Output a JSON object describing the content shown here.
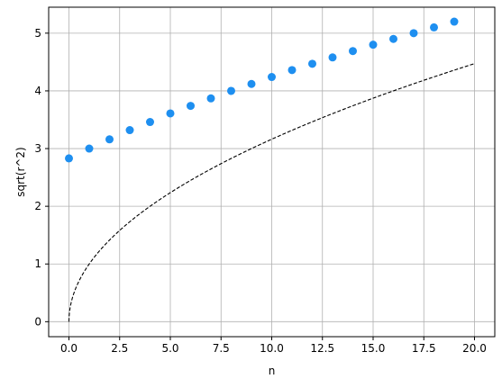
{
  "chart_data": {
    "type": "scatter",
    "title": "",
    "xlabel": "n",
    "ylabel": "sqrt(r^2)",
    "xlim": [
      -1,
      21
    ],
    "ylim": [
      -0.26,
      5.45
    ],
    "grid": true,
    "x_ticks": [
      0,
      2.5,
      5,
      7.5,
      10,
      12.5,
      15,
      17.5,
      20
    ],
    "x_tick_labels": [
      "0.0",
      "2.5",
      "5.0",
      "7.5",
      "10.0",
      "12.5",
      "15.0",
      "17.5",
      "20.0"
    ],
    "y_ticks": [
      0,
      1,
      2,
      3,
      4,
      5
    ],
    "y_tick_labels": [
      "0",
      "1",
      "2",
      "3",
      "4",
      "5"
    ],
    "series": [
      {
        "type": "scatter",
        "color": "#1e8ff0",
        "x": [
          0,
          1,
          2,
          3,
          4,
          5,
          6,
          7,
          8,
          9,
          10,
          11,
          12,
          13,
          14,
          15,
          16,
          17,
          18,
          19
        ],
        "y": [
          2.83,
          3.0,
          3.16,
          3.32,
          3.46,
          3.61,
          3.74,
          3.87,
          4.0,
          4.12,
          4.24,
          4.36,
          4.47,
          4.58,
          4.69,
          4.8,
          4.9,
          5.0,
          5.1,
          5.2
        ]
      },
      {
        "type": "line",
        "style": "dashed",
        "color": "#000000",
        "function": "sqrt",
        "x_range": [
          0,
          20
        ]
      }
    ]
  }
}
